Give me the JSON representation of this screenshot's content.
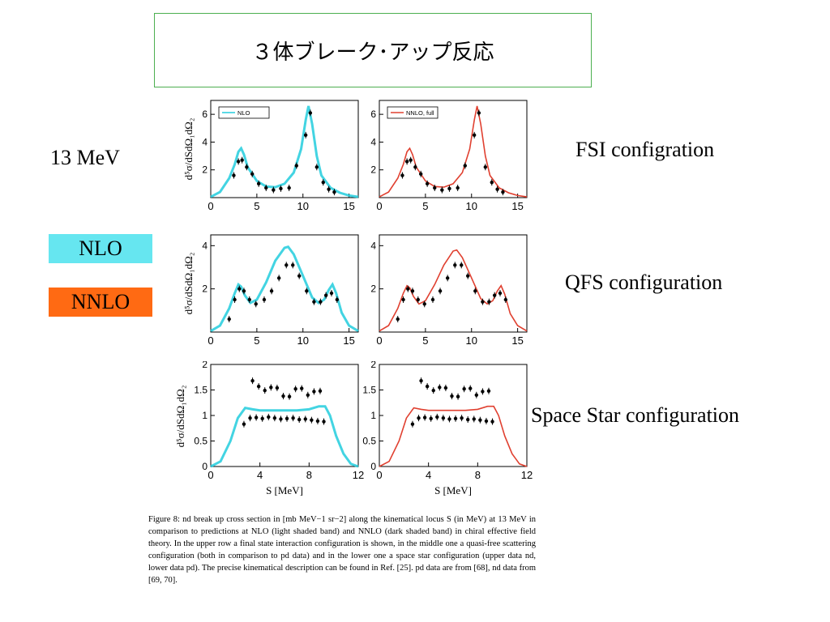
{
  "slide": {
    "title": "３体ブレーク･アップ反応",
    "energy_label": "13 MeV",
    "legend": [
      {
        "label": "NLO",
        "color": "#66e6f0"
      },
      {
        "label": "NNLO",
        "color": "#ff6a13"
      }
    ],
    "config_labels": [
      "FSI configration",
      "QFS configuration",
      "Space Star configuration"
    ],
    "caption": "Figure 8: nd break up cross section in [mb MeV−1 sr−2] along the kinematical locus S (in MeV) at 13 MeV in comparison to predictions at NLO (light shaded band) and NNLO (dark shaded band) in chiral effective field theory. In the upper row a final state interaction configuration is shown, in the middle one a quasi-free scattering configuration (both in comparison to pd data) and in the lower one a space star configuration (upper data nd, lower data pd). The precise kinematical description can be found in Ref. [25]. pd data are from [68], nd data from [69, 70]."
  },
  "colors": {
    "nlo": "#22ccdd",
    "nnlo": "#e04030",
    "data": "#000000"
  },
  "chart_data": [
    {
      "type": "line",
      "row": "FSI",
      "ylabel": "d⁵σ/dSdΩ₁dΩ₂",
      "xlim": [
        0,
        16
      ],
      "ylim": [
        0,
        7
      ],
      "x_ticks": [
        "0",
        "5",
        "10",
        "15"
      ],
      "x_tick_vals": [
        0,
        5,
        10,
        15
      ],
      "y_ticks": [
        "2",
        "4",
        "6"
      ],
      "y_tick_vals": [
        2,
        4,
        6
      ],
      "xlabel": "",
      "theory_x": [
        0,
        1,
        2,
        2.6,
        3,
        3.3,
        3.6,
        4,
        5,
        6,
        7,
        8,
        9,
        9.8,
        10.3,
        10.6,
        11,
        11.5,
        12,
        13,
        14,
        15,
        16
      ],
      "theory_nlo": [
        0.05,
        0.4,
        1.4,
        2.4,
        3.3,
        3.55,
        3.1,
        2.2,
        1.2,
        0.8,
        0.75,
        1.0,
        1.8,
        3.5,
        5.6,
        6.6,
        5.3,
        3.0,
        1.6,
        0.7,
        0.35,
        0.15,
        0.05
      ],
      "theory_nnlo": [
        0.05,
        0.4,
        1.4,
        2.4,
        3.3,
        3.55,
        3.1,
        2.2,
        1.2,
        0.8,
        0.75,
        1.0,
        1.8,
        3.5,
        5.6,
        6.6,
        5.3,
        3.0,
        1.6,
        0.7,
        0.35,
        0.15,
        0.05
      ],
      "data_sets": [
        {
          "x": [
            2.5,
            3.0,
            3.4,
            3.9,
            4.5,
            5.2,
            6.0,
            6.8,
            7.6,
            8.5,
            9.3,
            10.3,
            10.8,
            11.5,
            12.2,
            12.8,
            13.4
          ],
          "y": [
            1.6,
            2.6,
            2.7,
            2.2,
            1.7,
            1.0,
            0.7,
            0.55,
            0.65,
            0.7,
            2.3,
            4.5,
            6.1,
            2.2,
            1.1,
            0.6,
            0.4
          ]
        }
      ],
      "legend_nlo": "NLO",
      "legend_nnlo": "NNLO, full"
    },
    {
      "type": "line",
      "row": "QFS",
      "ylabel": "d⁵σ/dSdΩ₁dΩ₂",
      "xlim": [
        0,
        16
      ],
      "ylim": [
        0,
        4.5
      ],
      "x_ticks": [
        "0",
        "5",
        "10",
        "15"
      ],
      "x_tick_vals": [
        0,
        5,
        10,
        15
      ],
      "y_ticks": [
        "2",
        "4"
      ],
      "y_tick_vals": [
        2,
        4
      ],
      "xlabel": "",
      "theory_x": [
        0,
        1,
        2,
        2.6,
        3,
        3.3,
        3.7,
        4.3,
        5,
        6,
        7,
        8,
        8.4,
        9,
        10,
        11,
        11.7,
        12.3,
        12.8,
        13.2,
        13.6,
        14.2,
        15,
        16
      ],
      "theory_nlo": [
        0.05,
        0.3,
        1.1,
        1.8,
        2.2,
        2.1,
        1.7,
        1.35,
        1.5,
        2.3,
        3.3,
        3.9,
        3.95,
        3.6,
        2.6,
        1.6,
        1.35,
        1.5,
        1.95,
        2.2,
        1.8,
        0.9,
        0.3,
        0.05
      ],
      "theory_nnlo": [
        0.05,
        0.3,
        1.1,
        1.8,
        2.15,
        2.05,
        1.65,
        1.3,
        1.45,
        2.2,
        3.1,
        3.75,
        3.8,
        3.45,
        2.5,
        1.55,
        1.3,
        1.45,
        1.9,
        2.15,
        1.75,
        0.85,
        0.3,
        0.05
      ],
      "data_sets": [
        {
          "x": [
            2.0,
            2.6,
            3.1,
            3.6,
            4.2,
            4.9,
            5.8,
            6.6,
            7.4,
            8.2,
            8.9,
            9.6,
            10.4,
            11.2,
            11.9,
            12.5,
            13.1,
            13.7
          ],
          "y": [
            0.6,
            1.5,
            2.0,
            1.9,
            1.5,
            1.3,
            1.5,
            1.9,
            2.5,
            3.1,
            3.1,
            2.6,
            1.9,
            1.4,
            1.4,
            1.7,
            1.8,
            1.5
          ]
        }
      ],
      "legend_nlo": "",
      "legend_nnlo": ""
    },
    {
      "type": "line",
      "row": "Space Star",
      "ylabel": "d⁵σ/dSdΩ₁dΩ₂",
      "xlim": [
        0,
        12
      ],
      "ylim": [
        0,
        2
      ],
      "x_ticks": [
        "0",
        "4",
        "8",
        "12"
      ],
      "x_tick_vals": [
        0,
        4,
        8,
        12
      ],
      "y_ticks": [
        "0",
        "0.5",
        "1",
        "1.5",
        "2"
      ],
      "y_tick_vals": [
        0,
        0.5,
        1,
        1.5,
        2
      ],
      "xlabel": "S [MeV]",
      "theory_x": [
        0,
        0.8,
        1.6,
        2.2,
        2.8,
        3.4,
        4,
        5,
        6,
        7,
        8,
        8.8,
        9.3,
        9.7,
        10.2,
        10.8,
        11.4,
        12
      ],
      "theory_nlo": [
        0.0,
        0.1,
        0.5,
        0.95,
        1.15,
        1.12,
        1.1,
        1.1,
        1.1,
        1.1,
        1.12,
        1.18,
        1.18,
        1.0,
        0.6,
        0.25,
        0.05,
        0.0
      ],
      "theory_nnlo": [
        0.0,
        0.1,
        0.5,
        0.95,
        1.15,
        1.12,
        1.1,
        1.1,
        1.1,
        1.1,
        1.12,
        1.18,
        1.18,
        1.0,
        0.6,
        0.25,
        0.05,
        0.0
      ],
      "data_sets": [
        {
          "x": [
            2.7,
            3.2,
            3.7,
            4.2,
            4.7,
            5.2,
            5.7,
            6.2,
            6.7,
            7.2,
            7.7,
            8.2,
            8.7,
            9.2
          ],
          "y": [
            0.83,
            0.95,
            0.96,
            0.94,
            0.97,
            0.95,
            0.93,
            0.94,
            0.95,
            0.92,
            0.93,
            0.91,
            0.89,
            0.88
          ]
        },
        {
          "x": [
            3.4,
            3.9,
            4.4,
            4.9,
            5.4,
            5.9,
            6.4,
            6.9,
            7.4,
            7.9,
            8.4,
            8.9
          ],
          "y": [
            1.68,
            1.57,
            1.49,
            1.55,
            1.54,
            1.38,
            1.37,
            1.52,
            1.53,
            1.4,
            1.47,
            1.48
          ]
        }
      ],
      "legend_nlo": "",
      "legend_nnlo": ""
    }
  ]
}
